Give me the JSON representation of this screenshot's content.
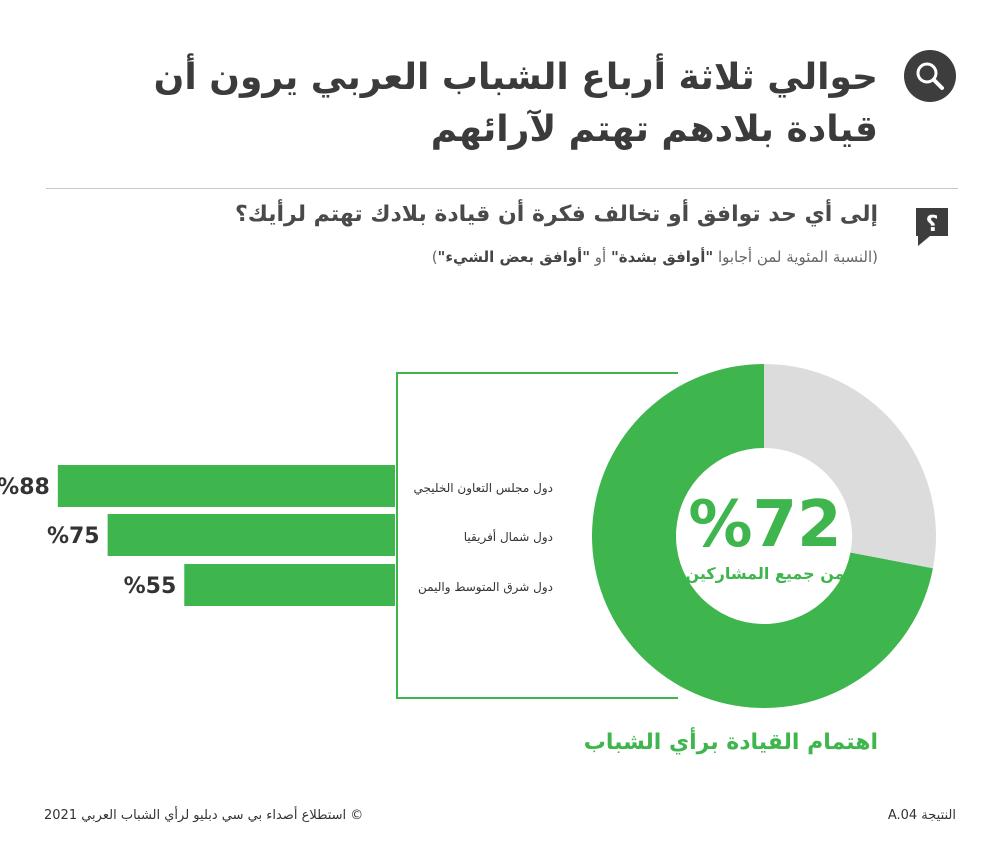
{
  "header": {
    "title": "حوالي ثلاثة أرباع الشباب العربي يرون أن قيادة بلادهم تهتم لآرائهم",
    "title_icon": "search-icon"
  },
  "question": {
    "text": "إلى أي حد توافق أو تخالف فكرة أن قيادة بلادك تهتم لرأيك؟",
    "icon": "question-bubble-icon",
    "note_prefix": "(النسبة المئوية لمن أجابوا ",
    "note_opt1": "\"أوافق بشدة\"",
    "note_or": " أو ",
    "note_opt2": "\"أوافق بعض الشيء\"",
    "note_suffix": ")"
  },
  "colors": {
    "green": "#3fb64d",
    "grey": "#dcdcdc",
    "dark": "#3d3d3d"
  },
  "chart_data": [
    {
      "type": "pie",
      "title": "اهتمام القيادة برأي الشباب",
      "center_value": "%72",
      "center_label": "من جميع المشاركين",
      "slices": [
        {
          "value": 72,
          "color": "#3fb64d"
        },
        {
          "value": 28,
          "color": "#dcdcdc"
        }
      ]
    },
    {
      "type": "bar",
      "orientation": "horizontal",
      "categories": [
        "دول مجلس التعاون الخليجي",
        "دول شمال أفريقيا",
        "دول شرق المتوسط واليمن"
      ],
      "values": [
        88,
        75,
        55
      ],
      "value_labels": [
        "%88",
        "%75",
        "%55"
      ],
      "xlim": [
        0,
        100
      ],
      "color": "#3fb64d"
    }
  ],
  "footer": {
    "left": "© استطلاع أصداء بي سي دبليو لرأي الشباب العربي 2021",
    "right": "النتيجة A.04"
  }
}
